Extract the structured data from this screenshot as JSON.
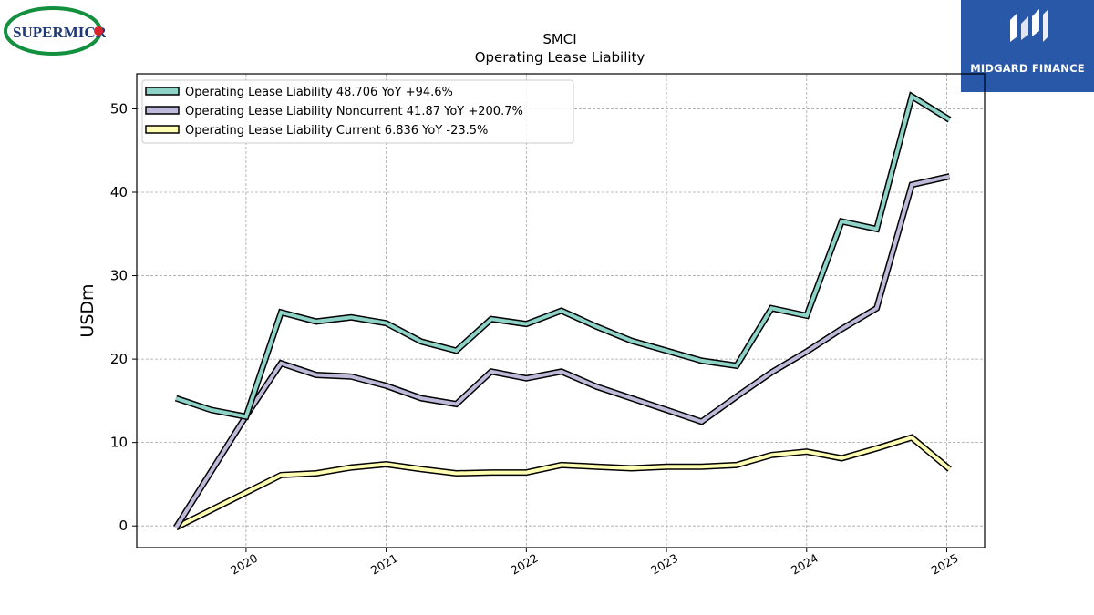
{
  "logos": {
    "left": {
      "text": "SUPERMICR",
      "colors": {
        "ellipse": "#12903e",
        "text": "#1f3a78",
        "dot": "#d9232d"
      }
    },
    "right": {
      "text": "MIDGARD FINANCE",
      "colors": {
        "background": "#2a58a8",
        "mark": "#ffffff"
      }
    }
  },
  "chart_data": {
    "type": "line",
    "title": "SMCI",
    "subtitle": "Operating Lease Liability",
    "xlabel": "",
    "ylabel": "USDm",
    "xlim": [
      2019.22,
      2025.27
    ],
    "ylim": [
      -2.6,
      54.2
    ],
    "x_ticks": [
      2020,
      2021,
      2022,
      2023,
      2024,
      2025
    ],
    "x_tick_labels": [
      "2020",
      "2021",
      "2022",
      "2023",
      "2024",
      "2025"
    ],
    "y_ticks": [
      0,
      10,
      20,
      30,
      40,
      50
    ],
    "y_tick_labels": [
      "0",
      "10",
      "20",
      "30",
      "40",
      "50"
    ],
    "grid": true,
    "legend_position": "top-left",
    "series": [
      {
        "name": "Operating Lease Liability  48.706 YoY +94.6%",
        "color": "#8dd3c7",
        "x": [
          2019.5,
          2019.75,
          2020.0,
          2020.25,
          2020.5,
          2020.75,
          2021.0,
          2021.25,
          2021.5,
          2021.75,
          2022.0,
          2022.25,
          2022.5,
          2022.75,
          2023.0,
          2023.25,
          2023.5,
          2023.75,
          2024.0,
          2024.25,
          2024.5,
          2024.75,
          2025.02
        ],
        "values": [
          15.3,
          13.9,
          13.1,
          25.6,
          24.5,
          25.0,
          24.3,
          22.1,
          21.0,
          24.8,
          24.2,
          25.8,
          23.9,
          22.2,
          21.0,
          19.8,
          19.2,
          26.1,
          25.2,
          36.5,
          35.6,
          51.5,
          48.7
        ]
      },
      {
        "name": "Operating Lease Liability Noncurrent  41.87 YoY +200.7%",
        "color": "#bebada",
        "x": [
          2019.5,
          2020.0,
          2020.25,
          2020.5,
          2020.75,
          2021.0,
          2021.25,
          2021.5,
          2021.75,
          2022.0,
          2022.25,
          2022.5,
          2022.75,
          2023.0,
          2023.25,
          2023.5,
          2023.75,
          2024.0,
          2024.25,
          2024.5,
          2024.75,
          2025.02
        ],
        "values": [
          -0.2,
          13.2,
          19.5,
          18.1,
          17.9,
          16.8,
          15.3,
          14.6,
          18.5,
          17.7,
          18.5,
          16.7,
          15.3,
          13.9,
          12.5,
          15.5,
          18.4,
          20.9,
          23.6,
          26.1,
          40.9,
          41.9
        ]
      },
      {
        "name": "Operating Lease Liability Current  6.836 YoY -23.5%",
        "color": "#ffffb3",
        "x": [
          2019.5,
          2020.0,
          2020.25,
          2020.5,
          2020.75,
          2021.0,
          2021.25,
          2021.5,
          2021.75,
          2022.0,
          2022.25,
          2022.5,
          2022.75,
          2023.0,
          2023.25,
          2023.5,
          2023.75,
          2024.0,
          2024.25,
          2024.5,
          2024.75,
          2025.02
        ],
        "values": [
          -0.2,
          4.0,
          6.1,
          6.3,
          7.0,
          7.4,
          6.8,
          6.3,
          6.4,
          6.4,
          7.3,
          7.1,
          6.9,
          7.1,
          7.1,
          7.3,
          8.5,
          8.9,
          8.1,
          9.3,
          10.6,
          6.8
        ]
      }
    ]
  }
}
